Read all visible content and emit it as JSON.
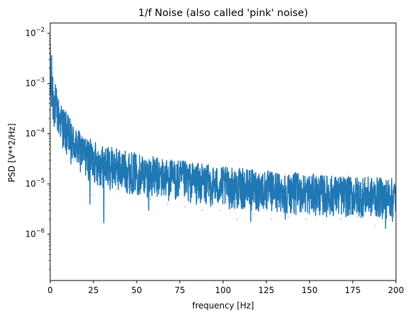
{
  "chart_data": {
    "type": "line",
    "title": "1/f Noise (also called 'pink' noise)",
    "xlabel": "frequency [Hz]",
    "ylabel": "PSD [V**2/Hz]",
    "xlim": [
      0,
      200
    ],
    "ylim": [
      1.2e-07,
      0.016
    ],
    "yscale": "log",
    "grid": false,
    "legend": "none",
    "xticks": [
      0,
      25,
      50,
      75,
      100,
      125,
      150,
      175,
      200
    ],
    "xtick_labels": [
      "0",
      "25",
      "50",
      "75",
      "100",
      "125",
      "150",
      "175",
      "200"
    ],
    "yticks": [
      1e-06,
      1e-05,
      0.0001,
      0.001,
      0.01
    ],
    "ytick_labels": [
      {
        "base": "10",
        "exp": "−6"
      },
      {
        "base": "10",
        "exp": "−5"
      },
      {
        "base": "10",
        "exp": "−4"
      },
      {
        "base": "10",
        "exp": "−3"
      },
      {
        "base": "10",
        "exp": "−2"
      }
    ],
    "series": [
      {
        "color": "#1f77b4",
        "x": [
          0,
          0.4,
          0.8,
          1.2,
          1.6,
          2,
          2.5,
          3,
          4,
          5,
          6,
          7,
          8,
          9,
          10,
          11,
          12,
          13,
          14,
          15,
          16,
          17,
          18,
          19,
          20,
          22,
          24,
          25,
          26,
          28,
          30,
          31,
          32,
          34,
          36,
          38,
          40,
          42,
          45,
          48,
          50,
          52,
          55,
          58,
          60,
          62,
          65,
          68,
          70,
          72,
          75,
          78,
          80,
          82,
          85,
          88,
          90,
          92,
          95,
          98,
          100,
          102,
          105,
          108,
          110,
          112,
          115,
          118,
          120,
          122,
          125,
          128,
          130,
          132,
          135,
          138,
          140,
          142,
          145,
          148,
          150,
          152,
          155,
          158,
          160,
          162,
          165,
          168,
          170,
          172,
          175,
          178,
          180,
          182,
          185,
          188,
          190,
          192,
          195,
          197,
          200
        ],
        "values": [
          0.006,
          0.003,
          0.0012,
          0.0007,
          0.0016,
          0.0004,
          0.0008,
          0.0003,
          0.00025,
          0.0004,
          0.00015,
          0.0002,
          9e-05,
          0.00022,
          6e-05,
          0.00013,
          4e-05,
          0.00012,
          3e-05,
          8e-05,
          5e-05,
          2.5e-05,
          6e-05,
          3e-05,
          7e-05,
          2e-05,
          4e-05,
          6e-06,
          5e-05,
          1.5e-05,
          4e-05,
          3e-06,
          2.5e-05,
          1.2e-05,
          3e-05,
          8e-06,
          4e-05,
          1e-05,
          2.5e-05,
          7e-06,
          2.8e-05,
          1e-05,
          2e-05,
          5e-06,
          3e-05,
          9e-06,
          1.8e-05,
          4e-06,
          2.5e-05,
          8e-06,
          1.5e-05,
          3.5e-06,
          2.2e-05,
          7e-06,
          1.3e-05,
          3e-06,
          2e-05,
          6e-06,
          1.2e-05,
          3e-06,
          1.8e-05,
          5e-06,
          1e-05,
          2e-06,
          1.5e-05,
          4e-06,
          9e-06,
          2.5e-06,
          1.4e-05,
          4e-06,
          8e-06,
          2e-06,
          1.3e-05,
          3.5e-06,
          7e-06,
          2.2e-06,
          1.2e-05,
          3e-06,
          8e-06,
          2e-06,
          1.1e-05,
          3e-06,
          6e-06,
          2.5e-06,
          1e-05,
          2.8e-06,
          7e-06,
          2e-06,
          9e-06,
          3e-06,
          6e-06,
          2.2e-06,
          1e-05,
          2.5e-06,
          7e-06,
          1.5e-06,
          9e-06,
          2e-06,
          8e-06,
          2.5e-06,
          5e-06
        ]
      }
    ],
    "density_model": {
      "envelope": [
        {
          "x": 0,
          "lo": 0.0001,
          "hi": 0.008
        },
        {
          "x": 2,
          "lo": 0.00012,
          "hi": 0.0015
        },
        {
          "x": 5,
          "lo": 8e-05,
          "hi": 0.0005
        },
        {
          "x": 10,
          "lo": 3e-05,
          "hi": 0.00025
        },
        {
          "x": 15,
          "lo": 2e-05,
          "hi": 0.00013
        },
        {
          "x": 20,
          "lo": 1.3e-05,
          "hi": 9e-05
        },
        {
          "x": 30,
          "lo": 8e-06,
          "hi": 6e-05
        },
        {
          "x": 40,
          "lo": 7e-06,
          "hi": 5e-05
        },
        {
          "x": 60,
          "lo": 5e-06,
          "hi": 3.5e-05
        },
        {
          "x": 80,
          "lo": 4e-06,
          "hi": 2.8e-05
        },
        {
          "x": 100,
          "lo": 3.2e-06,
          "hi": 2.2e-05
        },
        {
          "x": 130,
          "lo": 2.6e-06,
          "hi": 1.8e-05
        },
        {
          "x": 160,
          "lo": 2.2e-06,
          "hi": 1.5e-05
        },
        {
          "x": 200,
          "lo": 2e-06,
          "hi": 1.3e-05
        }
      ],
      "dips": [
        {
          "x": 31,
          "value": 1.7e-06
        },
        {
          "x": 23,
          "value": 4e-06
        },
        {
          "x": 12,
          "value": 2.5e-05
        },
        {
          "x": 57,
          "value": 3e-06
        },
        {
          "x": 116,
          "value": 1.8e-06
        },
        {
          "x": 136,
          "value": 2e-06
        },
        {
          "x": 194,
          "value": 1.3e-06
        },
        {
          "x": 198,
          "value": 1.8e-06
        }
      ]
    }
  }
}
